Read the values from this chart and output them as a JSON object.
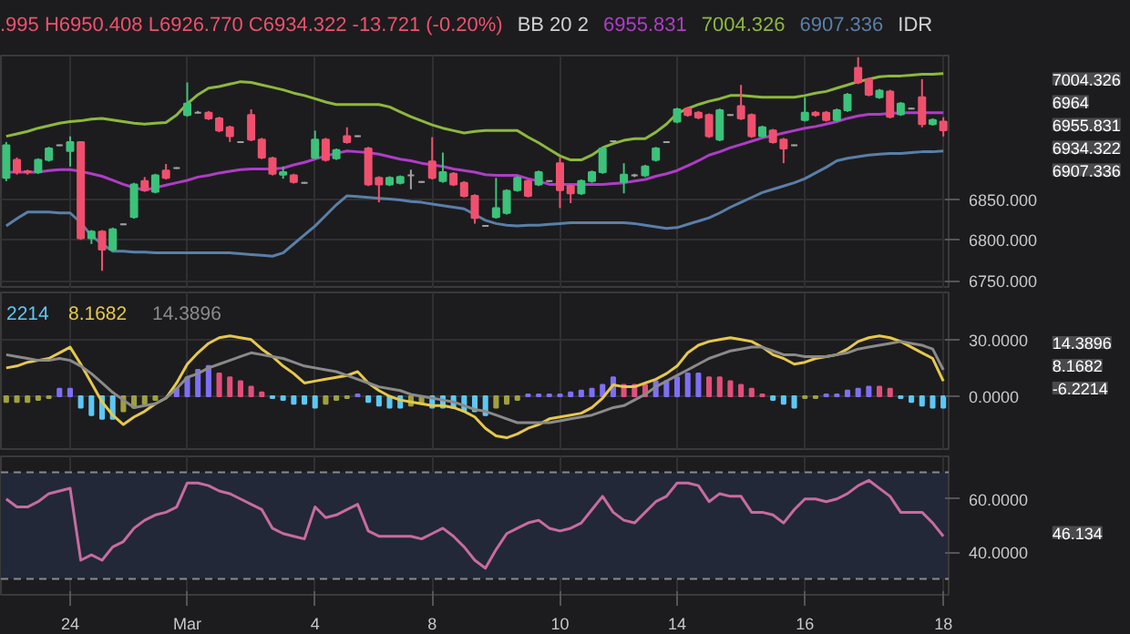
{
  "chart_data": [
    {
      "type": "candlestick",
      "title": ".995 H6950.408 L6926.770 C6934.322 -13.721 (-0.20%)",
      "legend_title": "BB 20 2",
      "ylabel": "IDR",
      "legend": "top",
      "grid": true,
      "tick_labels": "y",
      "ohlc": [
        [
          6876,
          6920,
          6872,
          6916
        ],
        [
          6898,
          6901,
          6880,
          6883
        ],
        [
          6884,
          6886,
          6880,
          6883
        ],
        [
          6883,
          6900,
          6881,
          6898
        ],
        [
          6898,
          6914,
          6896,
          6912
        ],
        [
          6916,
          6917,
          6915,
          6916
        ],
        [
          6909,
          6927,
          6890,
          6920
        ],
        [
          6920,
          6921,
          6800,
          6802
        ],
        [
          6802,
          6812,
          6795,
          6810
        ],
        [
          6810,
          6812,
          6762,
          6788
        ],
        [
          6788,
          6815,
          6786,
          6813
        ],
        [
          6819,
          6820,
          6818,
          6819
        ],
        [
          6828,
          6870,
          6826,
          6868
        ],
        [
          6872,
          6877,
          6859,
          6861
        ],
        [
          6859,
          6881,
          6857,
          6879
        ],
        [
          6885,
          6893,
          6874,
          6876
        ],
        [
          6888,
          6889,
          6887,
          6888
        ],
        [
          6953,
          6993,
          6951,
          6967
        ],
        [
          6956,
          6958,
          6955,
          6956
        ],
        [
          6956,
          6958,
          6947,
          6949
        ],
        [
          6949,
          6951,
          6932,
          6934
        ],
        [
          6938,
          6940,
          6920,
          6927
        ],
        [
          6920,
          6921,
          6919,
          6920
        ],
        [
          6953,
          6960,
          6921,
          6923
        ],
        [
          6923,
          6925,
          6899,
          6901
        ],
        [
          6900,
          6902,
          6879,
          6881
        ],
        [
          6880,
          6890,
          6875,
          6883
        ],
        [
          6879,
          6881,
          6869,
          6871
        ],
        [
          6870,
          6871,
          6869,
          6870
        ],
        [
          6901,
          6934,
          6899,
          6923
        ],
        [
          6923,
          6925,
          6896,
          6898
        ],
        [
          6900,
          6912,
          6898,
          6910
        ],
        [
          6927,
          6938,
          6918,
          6920
        ],
        [
          6927,
          6928,
          6926,
          6927
        ],
        [
          6912,
          6914,
          6866,
          6868
        ],
        [
          6876,
          6878,
          6846,
          6868
        ],
        [
          6868,
          6878,
          6866,
          6876
        ],
        [
          6870,
          6879,
          6868,
          6877
        ],
        [
          6879,
          6886,
          6862,
          6879
        ],
        [
          6871,
          6872,
          6870,
          6871
        ],
        [
          6896,
          6926,
          6874,
          6876
        ],
        [
          6872,
          6907,
          6870,
          6883
        ],
        [
          6881,
          6883,
          6866,
          6868
        ],
        [
          6870,
          6872,
          6852,
          6854
        ],
        [
          6854,
          6856,
          6820,
          6827
        ],
        [
          6817,
          6818,
          6816,
          6817
        ],
        [
          6828,
          6876,
          6826,
          6839
        ],
        [
          6833,
          6862,
          6831,
          6860
        ],
        [
          6861,
          6878,
          6859,
          6876
        ],
        [
          6872,
          6874,
          6852,
          6854
        ],
        [
          6868,
          6885,
          6866,
          6883
        ],
        [
          6872,
          6873,
          6871,
          6872
        ],
        [
          6894,
          6901,
          6839,
          6861
        ],
        [
          6866,
          6868,
          6845,
          6857
        ],
        [
          6857,
          6874,
          6855,
          6872
        ],
        [
          6872,
          6885,
          6870,
          6883
        ],
        [
          6883,
          6914,
          6881,
          6912
        ],
        [
          6921,
          6922,
          6920,
          6921
        ],
        [
          6871,
          6894,
          6857,
          6880
        ],
        [
          6879,
          6881,
          6877,
          6879
        ],
        [
          6879,
          6892,
          6877,
          6890
        ],
        [
          6898,
          6914,
          6896,
          6912
        ],
        [
          6920,
          6921,
          6919,
          6920
        ],
        [
          6945,
          6962,
          6943,
          6960
        ],
        [
          6961,
          6963,
          6951,
          6953
        ],
        [
          6956,
          6958,
          6948,
          6950
        ],
        [
          6953,
          6955,
          6925,
          6927
        ],
        [
          6923,
          6961,
          6921,
          6959
        ],
        [
          6953,
          6954,
          6952,
          6953
        ],
        [
          6964,
          6990,
          6947,
          6949
        ],
        [
          6953,
          6955,
          6925,
          6927
        ],
        [
          6927,
          6940,
          6925,
          6938
        ],
        [
          6934,
          6936,
          6918,
          6920
        ],
        [
          6923,
          6925,
          6894,
          6912
        ],
        [
          6916,
          6917,
          6915,
          6916
        ],
        [
          6947,
          6975,
          6945,
          6956
        ],
        [
          6956,
          6958,
          6951,
          6953
        ],
        [
          6956,
          6958,
          6945,
          6947
        ],
        [
          6947,
          6961,
          6945,
          6959
        ],
        [
          6959,
          6980,
          6957,
          6978
        ],
        [
          7011,
          7024,
          6991,
          6993
        ],
        [
          6997,
          6999,
          6976,
          6978
        ],
        [
          6975,
          6985,
          6973,
          6983
        ],
        [
          6982,
          6984,
          6949,
          6951
        ],
        [
          6954,
          6969,
          6952,
          6967
        ],
        [
          6961,
          6962,
          6960,
          6961
        ],
        [
          6975,
          6997,
          6938,
          6942
        ],
        [
          6942,
          6949,
          6940,
          6947
        ],
        [
          6945,
          6950.408,
          6926.77,
          6934.322
        ]
      ],
      "colors": [
        "#3cc27a",
        "#f0506e",
        "#f0506e",
        "#3cc27a",
        "#3cc27a",
        "#a0a0a0",
        "#3cc27a",
        "#f0506e",
        "#3cc27a",
        "#f0506e",
        "#3cc27a",
        "#a0a0a0",
        "#3cc27a",
        "#f0506e",
        "#3cc27a",
        "#f0506e",
        "#a0a0a0",
        "#3cc27a",
        "#a0a0a0",
        "#f0506e",
        "#f0506e",
        "#f0506e",
        "#a0a0a0",
        "#f0506e",
        "#f0506e",
        "#f0506e",
        "#3cc27a",
        "#f0506e",
        "#a0a0a0",
        "#3cc27a",
        "#f0506e",
        "#3cc27a",
        "#f0506e",
        "#a0a0a0",
        "#f0506e",
        "#f0506e",
        "#3cc27a",
        "#3cc27a",
        "#a0a0a0",
        "#a0a0a0",
        "#f0506e",
        "#3cc27a",
        "#f0506e",
        "#f0506e",
        "#f0506e",
        "#a0a0a0",
        "#3cc27a",
        "#3cc27a",
        "#3cc27a",
        "#f0506e",
        "#3cc27a",
        "#a0a0a0",
        "#f0506e",
        "#f0506e",
        "#3cc27a",
        "#3cc27a",
        "#3cc27a",
        "#a0a0a0",
        "#3cc27a",
        "#a0a0a0",
        "#3cc27a",
        "#3cc27a",
        "#a0a0a0",
        "#3cc27a",
        "#f0506e",
        "#f0506e",
        "#f0506e",
        "#3cc27a",
        "#a0a0a0",
        "#f0506e",
        "#f0506e",
        "#3cc27a",
        "#f0506e",
        "#f0506e",
        "#a0a0a0",
        "#3cc27a",
        "#f0506e",
        "#f0506e",
        "#3cc27a",
        "#3cc27a",
        "#f0506e",
        "#f0506e",
        "#3cc27a",
        "#f0506e",
        "#3cc27a",
        "#a0a0a0",
        "#f0506e",
        "#3cc27a",
        "#f0506e"
      ],
      "series": [
        {
          "type": "line",
          "name": "6955.831",
          "color": "#b03cc8",
          "values": [
            6883,
            6883,
            6883,
            6883,
            6885,
            6886,
            6886,
            6884,
            6881,
            6878,
            6873,
            6868,
            6864,
            6861,
            6864,
            6867,
            6870,
            6873,
            6877,
            6879,
            6882,
            6884,
            6886,
            6887,
            6887,
            6887,
            6888,
            6892,
            6895,
            6899,
            6903,
            6906,
            6909,
            6908,
            6907,
            6905,
            6902,
            6899,
            6897,
            6894,
            6892,
            6890,
            6887,
            6885,
            6883,
            6880,
            6879,
            6879,
            6879,
            6875,
            6872,
            6868,
            6868,
            6868,
            6868,
            6868,
            6868,
            6869,
            6870,
            6872,
            6874,
            6878,
            6881,
            6885,
            6891,
            6897,
            6904,
            6908,
            6913,
            6917,
            6921,
            6925,
            6928,
            6931,
            6934,
            6937,
            6939,
            6942,
            6945,
            6949,
            6952,
            6954,
            6954,
            6955,
            6956,
            6956,
            6956,
            6956,
            6956
          ]
        },
        {
          "type": "line",
          "name": "7004.326",
          "color": "#8db83c",
          "values": [
            6927,
            6930,
            6933,
            6937,
            6940,
            6943,
            6945,
            6946,
            6948,
            6949,
            6947,
            6945,
            6943,
            6942,
            6943,
            6944,
            6953,
            6967,
            6978,
            6986,
            6988,
            6991,
            6994,
            6993,
            6990,
            6987,
            6984,
            6980,
            6977,
            6973,
            6969,
            6966,
            6966,
            6966,
            6966,
            6966,
            6963,
            6957,
            6951,
            6946,
            6941,
            6937,
            6934,
            6931,
            6933,
            6934,
            6934,
            6934,
            6934,
            6926,
            6919,
            6911,
            6903,
            6898,
            6898,
            6904,
            6913,
            6918,
            6922,
            6924,
            6924,
            6932,
            6942,
            6955,
            6961,
            6966,
            6970,
            6973,
            6977,
            6977,
            6976,
            6975,
            6975,
            6975,
            6975,
            6977,
            6980,
            6982,
            6986,
            6990,
            6994,
            6997,
            7000,
            7001,
            7001,
            7002,
            7003,
            7003,
            7004
          ]
        },
        {
          "type": "line",
          "name": "6907.336",
          "color": "#5a7fa8",
          "values": [
            6817,
            6826,
            6834,
            6834,
            6834,
            6833,
            6833,
            6821,
            6805,
            6795,
            6786,
            6786,
            6785,
            6785,
            6784,
            6784,
            6784,
            6784,
            6784,
            6784,
            6784,
            6784,
            6783,
            6782,
            6781,
            6780,
            6784,
            6795,
            6806,
            6817,
            6830,
            6843,
            6854,
            6853,
            6852,
            6851,
            6850,
            6849,
            6847,
            6846,
            6844,
            6842,
            6840,
            6838,
            6831,
            6824,
            6820,
            6818,
            6817,
            6818,
            6818,
            6819,
            6820,
            6821,
            6821,
            6821,
            6821,
            6821,
            6821,
            6820,
            6818,
            6816,
            6814,
            6815,
            6819,
            6823,
            6827,
            6833,
            6840,
            6846,
            6852,
            6858,
            6862,
            6866,
            6870,
            6875,
            6882,
            6889,
            6897,
            6900,
            6902,
            6904,
            6905,
            6906,
            6906,
            6907,
            6908,
            6908,
            6909
          ]
        }
      ],
      "annotations": [
        "7004.326",
        "6964",
        "6955.831",
        "6934.322",
        "6907.336"
      ],
      "ylim": [
        6740,
        7026
      ],
      "yticks": [
        {
          "value": 6750,
          "label": "6750.000"
        },
        {
          "value": 6800,
          "label": "6800.000"
        },
        {
          "value": 6850,
          "label": "6850.000"
        }
      ]
    },
    {
      "type": "bar",
      "legend": "top left",
      "grid": true,
      "tick_labels": "y",
      "series": [
        {
          "type": "bar",
          "name": "2214",
          "color": "#5bc8f5",
          "values": [
            -3,
            -3,
            -3,
            -2,
            -1,
            4,
            4,
            -6,
            -10,
            -12,
            -12,
            -8,
            -6,
            -4,
            -2,
            null,
            4,
            10,
            14,
            16,
            12,
            10,
            8,
            5,
            2,
            -1,
            -2,
            -4,
            -4,
            -6,
            -4,
            -2,
            -1,
            1,
            -3,
            -5,
            -6,
            -6,
            -5,
            -4,
            -6,
            -6,
            -6,
            -8,
            -8,
            -10,
            -6,
            -4,
            -2,
            1,
            1,
            1,
            1,
            2,
            3,
            4,
            6,
            10,
            6,
            6,
            6,
            8,
            8,
            10,
            12,
            12,
            10,
            10,
            8,
            6,
            4,
            1,
            -2,
            -4,
            -6,
            -1,
            -1,
            1,
            1,
            3,
            4,
            5,
            5,
            4,
            -1,
            -3,
            -5,
            -6,
            -6
          ],
          "colors": [
            "#a0a040",
            "#a0a040",
            "#a0a040",
            "#a0a040",
            "#a0a040",
            "#7e6ff5",
            "#7e6ff5",
            "#5bc8f5",
            "#5bc8f5",
            "#5bc8f5",
            "#5bc8f5",
            "#a0a040",
            "#a0a040",
            "#a0a040",
            "#a0a040",
            "#a0a040",
            "#7e6ff5",
            "#7e6ff5",
            "#7e6ff5",
            "#7e6ff5",
            "#e0507a",
            "#e0507a",
            "#e0507a",
            "#e0507a",
            "#e0507a",
            "#5bc8f5",
            "#5bc8f5",
            "#5bc8f5",
            "#5bc8f5",
            "#5bc8f5",
            "#a0a040",
            "#a0a040",
            "#a0a040",
            "#7e6ff5",
            "#5bc8f5",
            "#5bc8f5",
            "#5bc8f5",
            "#5bc8f5",
            "#a0a040",
            "#a0a040",
            "#5bc8f5",
            "#5bc8f5",
            "#5bc8f5",
            "#5bc8f5",
            "#5bc8f5",
            "#5bc8f5",
            "#a0a040",
            "#a0a040",
            "#a0a040",
            "#7e6ff5",
            "#7e6ff5",
            "#7e6ff5",
            "#7e6ff5",
            "#7e6ff5",
            "#7e6ff5",
            "#7e6ff5",
            "#7e6ff5",
            "#7e6ff5",
            "#e0507a",
            "#e0507a",
            "#e0507a",
            "#7e6ff5",
            "#7e6ff5",
            "#7e6ff5",
            "#7e6ff5",
            "#7e6ff5",
            "#e0507a",
            "#e0507a",
            "#e0507a",
            "#e0507a",
            "#e0507a",
            "#e0507a",
            "#5bc8f5",
            "#5bc8f5",
            "#5bc8f5",
            "#a0a040",
            "#a0a040",
            "#7e6ff5",
            "#7e6ff5",
            "#7e6ff5",
            "#7e6ff5",
            "#7e6ff5",
            "#e0507a",
            "#e0507a",
            "#5bc8f5",
            "#5bc8f5",
            "#5bc8f5",
            "#5bc8f5",
            "#5bc8f5"
          ]
        },
        {
          "type": "line",
          "name": "8.1682",
          "color": "#e6c84a",
          "values": [
            15,
            16,
            18,
            19,
            20,
            23,
            26,
            17,
            7,
            -3,
            -10,
            -15,
            -11,
            -8,
            -4,
            -1,
            7,
            17,
            23,
            28,
            31,
            32,
            31,
            30,
            25,
            21,
            16,
            12,
            7,
            8,
            9,
            10,
            11,
            13,
            7,
            3,
            0,
            -2,
            -3,
            -4,
            -5,
            -5,
            -6,
            -8,
            -11,
            -17,
            -21,
            -22,
            -20,
            -17,
            -15,
            -12,
            -11,
            -10,
            -9,
            -6,
            -1,
            6,
            5,
            5,
            7,
            9,
            12,
            16,
            23,
            27,
            29,
            30,
            31,
            30,
            29,
            26,
            22,
            20,
            17,
            18,
            20,
            21,
            22,
            25,
            29,
            31,
            32,
            31,
            29,
            26,
            23,
            20,
            8
          ]
        },
        {
          "type": "line",
          "name": "14.3896",
          "color": "#8a8a8a",
          "values": [
            22,
            21,
            20,
            19,
            19,
            20,
            19,
            16,
            12,
            7,
            2,
            -2,
            -6,
            -5,
            -4,
            -1,
            4,
            10,
            12,
            15,
            17,
            19,
            21,
            23,
            22,
            21,
            20,
            18,
            16,
            15,
            14,
            13,
            11,
            9,
            7,
            5,
            4,
            3,
            1,
            0,
            -1,
            -2,
            -3,
            -5,
            -7,
            -8,
            -10,
            -12,
            -14,
            -14,
            -14,
            -14,
            -13,
            -12,
            -11,
            -10,
            -8,
            -6,
            -5,
            -2,
            1,
            5,
            8,
            11,
            14,
            17,
            20,
            22,
            24,
            25,
            26,
            26,
            24,
            22,
            22,
            21,
            21,
            21,
            22,
            23,
            25,
            26,
            27,
            28,
            29,
            28,
            27,
            25,
            14
          ]
        }
      ],
      "annotations": [
        "14.3896",
        "8.1682",
        "-6.2214"
      ],
      "ylim": [
        -28,
        55
      ],
      "yticks": [
        {
          "value": 30,
          "label": "30.0000"
        },
        {
          "value": 0,
          "label": "0.0000"
        }
      ]
    },
    {
      "type": "line",
      "grid": true,
      "categories": [
        null,
        null,
        null,
        null,
        null,
        null,
        "24",
        null,
        null,
        null,
        null,
        null,
        null,
        null,
        null,
        null,
        null,
        "Mar",
        null,
        null,
        null,
        null,
        null,
        null,
        null,
        null,
        null,
        null,
        null,
        "4",
        null,
        null,
        null,
        null,
        null,
        null,
        null,
        null,
        null,
        null,
        "8",
        null,
        null,
        null,
        null,
        null,
        null,
        null,
        null,
        null,
        null,
        null,
        "10",
        null,
        null,
        null,
        null,
        null,
        null,
        null,
        null,
        null,
        null,
        "14",
        null,
        null,
        null,
        null,
        null,
        null,
        null,
        null,
        null,
        null,
        null,
        "16",
        null,
        null,
        null,
        null,
        null,
        null,
        null,
        null,
        null,
        null,
        null,
        null,
        "18"
      ],
      "series": [
        {
          "type": "line",
          "color": "#c86ba0",
          "values": [
            60,
            57,
            57,
            59,
            62,
            63,
            64,
            37,
            39,
            37,
            42,
            44,
            49,
            52,
            54,
            55,
            57,
            66,
            66,
            65,
            63,
            62,
            60,
            58,
            56,
            49,
            47,
            46,
            45,
            57,
            53,
            54,
            56,
            58,
            48,
            46,
            46,
            46,
            46,
            45,
            47,
            49,
            46,
            42,
            37,
            34,
            41,
            47,
            49,
            51,
            52,
            49,
            48,
            49,
            51,
            56,
            61,
            55,
            52,
            51,
            55,
            59,
            61,
            66,
            66,
            65,
            59,
            62,
            61,
            61,
            55,
            55,
            54,
            51,
            56,
            60,
            60,
            59,
            60,
            62,
            65,
            67,
            64,
            61,
            55,
            55,
            55,
            51,
            46
          ]
        }
      ],
      "ref_lines": [
        {
          "axis": "y",
          "value": 70,
          "color": "#8a8a8a",
          "line_style": "dashed"
        },
        {
          "axis": "y",
          "value": 30,
          "color": "#8a8a8a",
          "line_style": "dashed"
        }
      ],
      "bands": [
        {
          "axis": "y",
          "from": 30,
          "to": 70,
          "color": "#222838"
        }
      ],
      "annotations": [
        "46.134"
      ],
      "ylim": [
        24,
        76
      ],
      "yticks": [
        {
          "value": 60,
          "label": "60.0000"
        },
        {
          "value": 40,
          "label": "40.0000"
        }
      ]
    }
  ]
}
